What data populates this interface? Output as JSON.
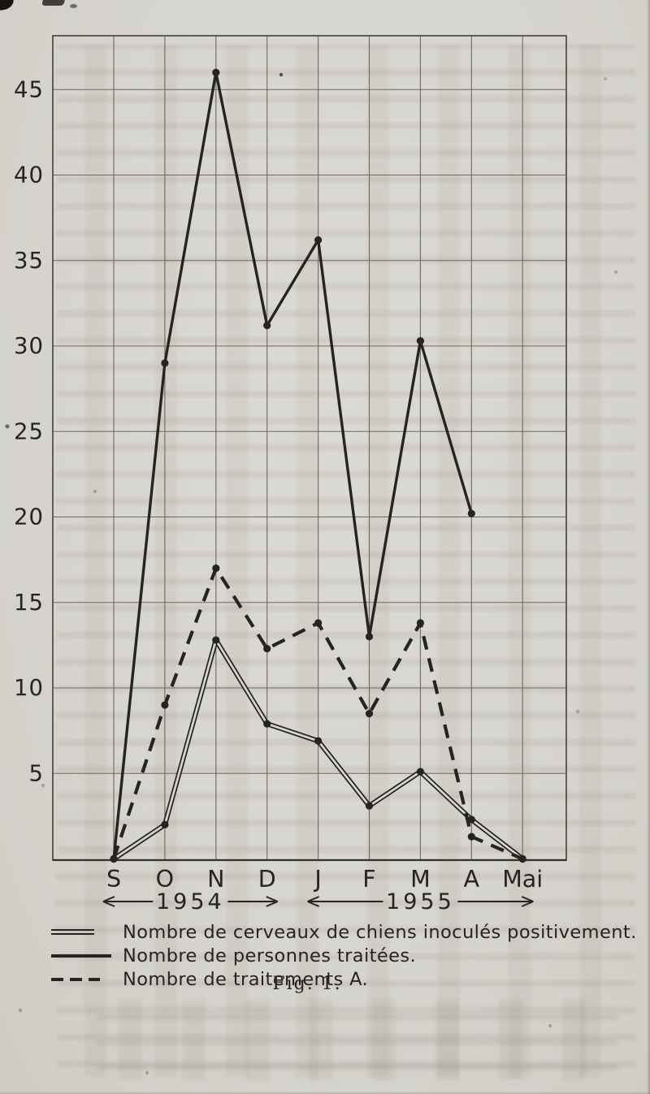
{
  "figure": {
    "caption": "Fig. 1."
  },
  "colors": {
    "paper": "#d7d5cf",
    "ink": "#26241f",
    "grid": "#6e695f"
  },
  "chart_data": {
    "type": "line",
    "title": "",
    "xlabel": "",
    "ylabel": "",
    "categories": [
      "S",
      "O",
      "N",
      "D",
      "J",
      "F",
      "M",
      "A",
      "Mai"
    ],
    "x_groups": [
      {
        "label": "1954",
        "from": 0,
        "to": 3
      },
      {
        "label": "1955",
        "from": 4,
        "to": 8
      }
    ],
    "yticks": [
      5,
      10,
      15,
      20,
      25,
      30,
      35,
      40,
      45
    ],
    "ylim": [
      0,
      48
    ],
    "grid": true,
    "legend_position": "bottom-left",
    "series": [
      {
        "name": "Nombre de cerveaux de chiens inoculés positivement.",
        "style": "double",
        "values": [
          0,
          2,
          12.8,
          7.9,
          6.9,
          3.1,
          5.1,
          2.3,
          0
        ]
      },
      {
        "name": "Nombre de personnes traitées.",
        "style": "solid",
        "values": [
          0,
          29,
          46,
          31.2,
          36.2,
          13,
          30.3,
          20.2,
          null
        ]
      },
      {
        "name": "Nombre de traitements A.",
        "style": "dashed",
        "values": [
          0,
          9,
          17,
          12.3,
          13.8,
          8.5,
          13.8,
          1.3,
          0
        ]
      }
    ]
  }
}
